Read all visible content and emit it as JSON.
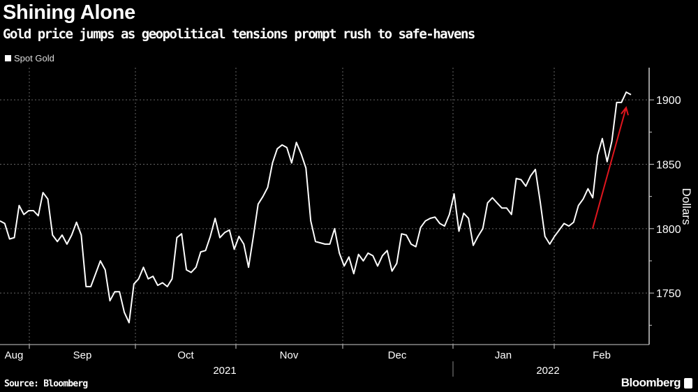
{
  "header": {
    "title": "Shining Alone",
    "subtitle": "Gold price jumps as geopolitical tensions prompt rush to safe-havens"
  },
  "footer": {
    "source": "Source: Bloomberg",
    "brand": "Bloomberg"
  },
  "colors": {
    "line": "#ffffff",
    "arrow": "#e0161e",
    "grid": "#666666",
    "background": "#000000"
  },
  "chart_data": {
    "type": "line",
    "title": "Shining Alone",
    "subtitle": "Gold price jumps as geopolitical tensions prompt rush to safe-havens",
    "xlabel": "",
    "ylabel": "Dollars",
    "ylim": [
      1710,
      1925
    ],
    "yticks": [
      1750,
      1800,
      1850,
      1900
    ],
    "grid": true,
    "legend": {
      "position": "top-left",
      "entries": [
        "Spot Gold"
      ]
    },
    "x_range": [
      "Aug 2021",
      "Feb 2022"
    ],
    "month_labels": [
      "Aug",
      "Sep",
      "Oct",
      "Nov",
      "Dec",
      "Jan",
      "Feb"
    ],
    "year_labels": [
      "2021",
      "2022"
    ],
    "annotation": {
      "type": "arrow",
      "from_value": 1800,
      "to_value": 1894,
      "description_color": "red"
    },
    "series": [
      {
        "name": "Spot Gold",
        "values": [
          1806,
          1804,
          1792,
          1793,
          1818,
          1811,
          1814,
          1814,
          1810,
          1828,
          1823,
          1795,
          1790,
          1795,
          1788,
          1795,
          1805,
          1795,
          1755,
          1755,
          1765,
          1775,
          1768,
          1744,
          1751,
          1751,
          1735,
          1727,
          1757,
          1761,
          1770,
          1761,
          1763,
          1756,
          1758,
          1755,
          1761,
          1793,
          1796,
          1768,
          1766,
          1770,
          1782,
          1783,
          1794,
          1808,
          1793,
          1797,
          1799,
          1784,
          1794,
          1788,
          1770,
          1794,
          1819,
          1825,
          1832,
          1851,
          1862,
          1865,
          1863,
          1851,
          1867,
          1858,
          1847,
          1806,
          1790,
          1789,
          1788,
          1788,
          1800,
          1781,
          1771,
          1778,
          1765,
          1780,
          1775,
          1781,
          1779,
          1771,
          1779,
          1783,
          1767,
          1773,
          1796,
          1795,
          1788,
          1786,
          1801,
          1806,
          1808,
          1809,
          1804,
          1802,
          1811,
          1827,
          1798,
          1812,
          1808,
          1787,
          1794,
          1800,
          1820,
          1824,
          1820,
          1816,
          1816,
          1811,
          1839,
          1838,
          1833,
          1841,
          1846,
          1821,
          1794,
          1788,
          1794,
          1799,
          1804,
          1802,
          1805,
          1818,
          1823,
          1831,
          1824,
          1857,
          1870,
          1852,
          1868,
          1898,
          1898,
          1906,
          1904
        ]
      }
    ]
  }
}
